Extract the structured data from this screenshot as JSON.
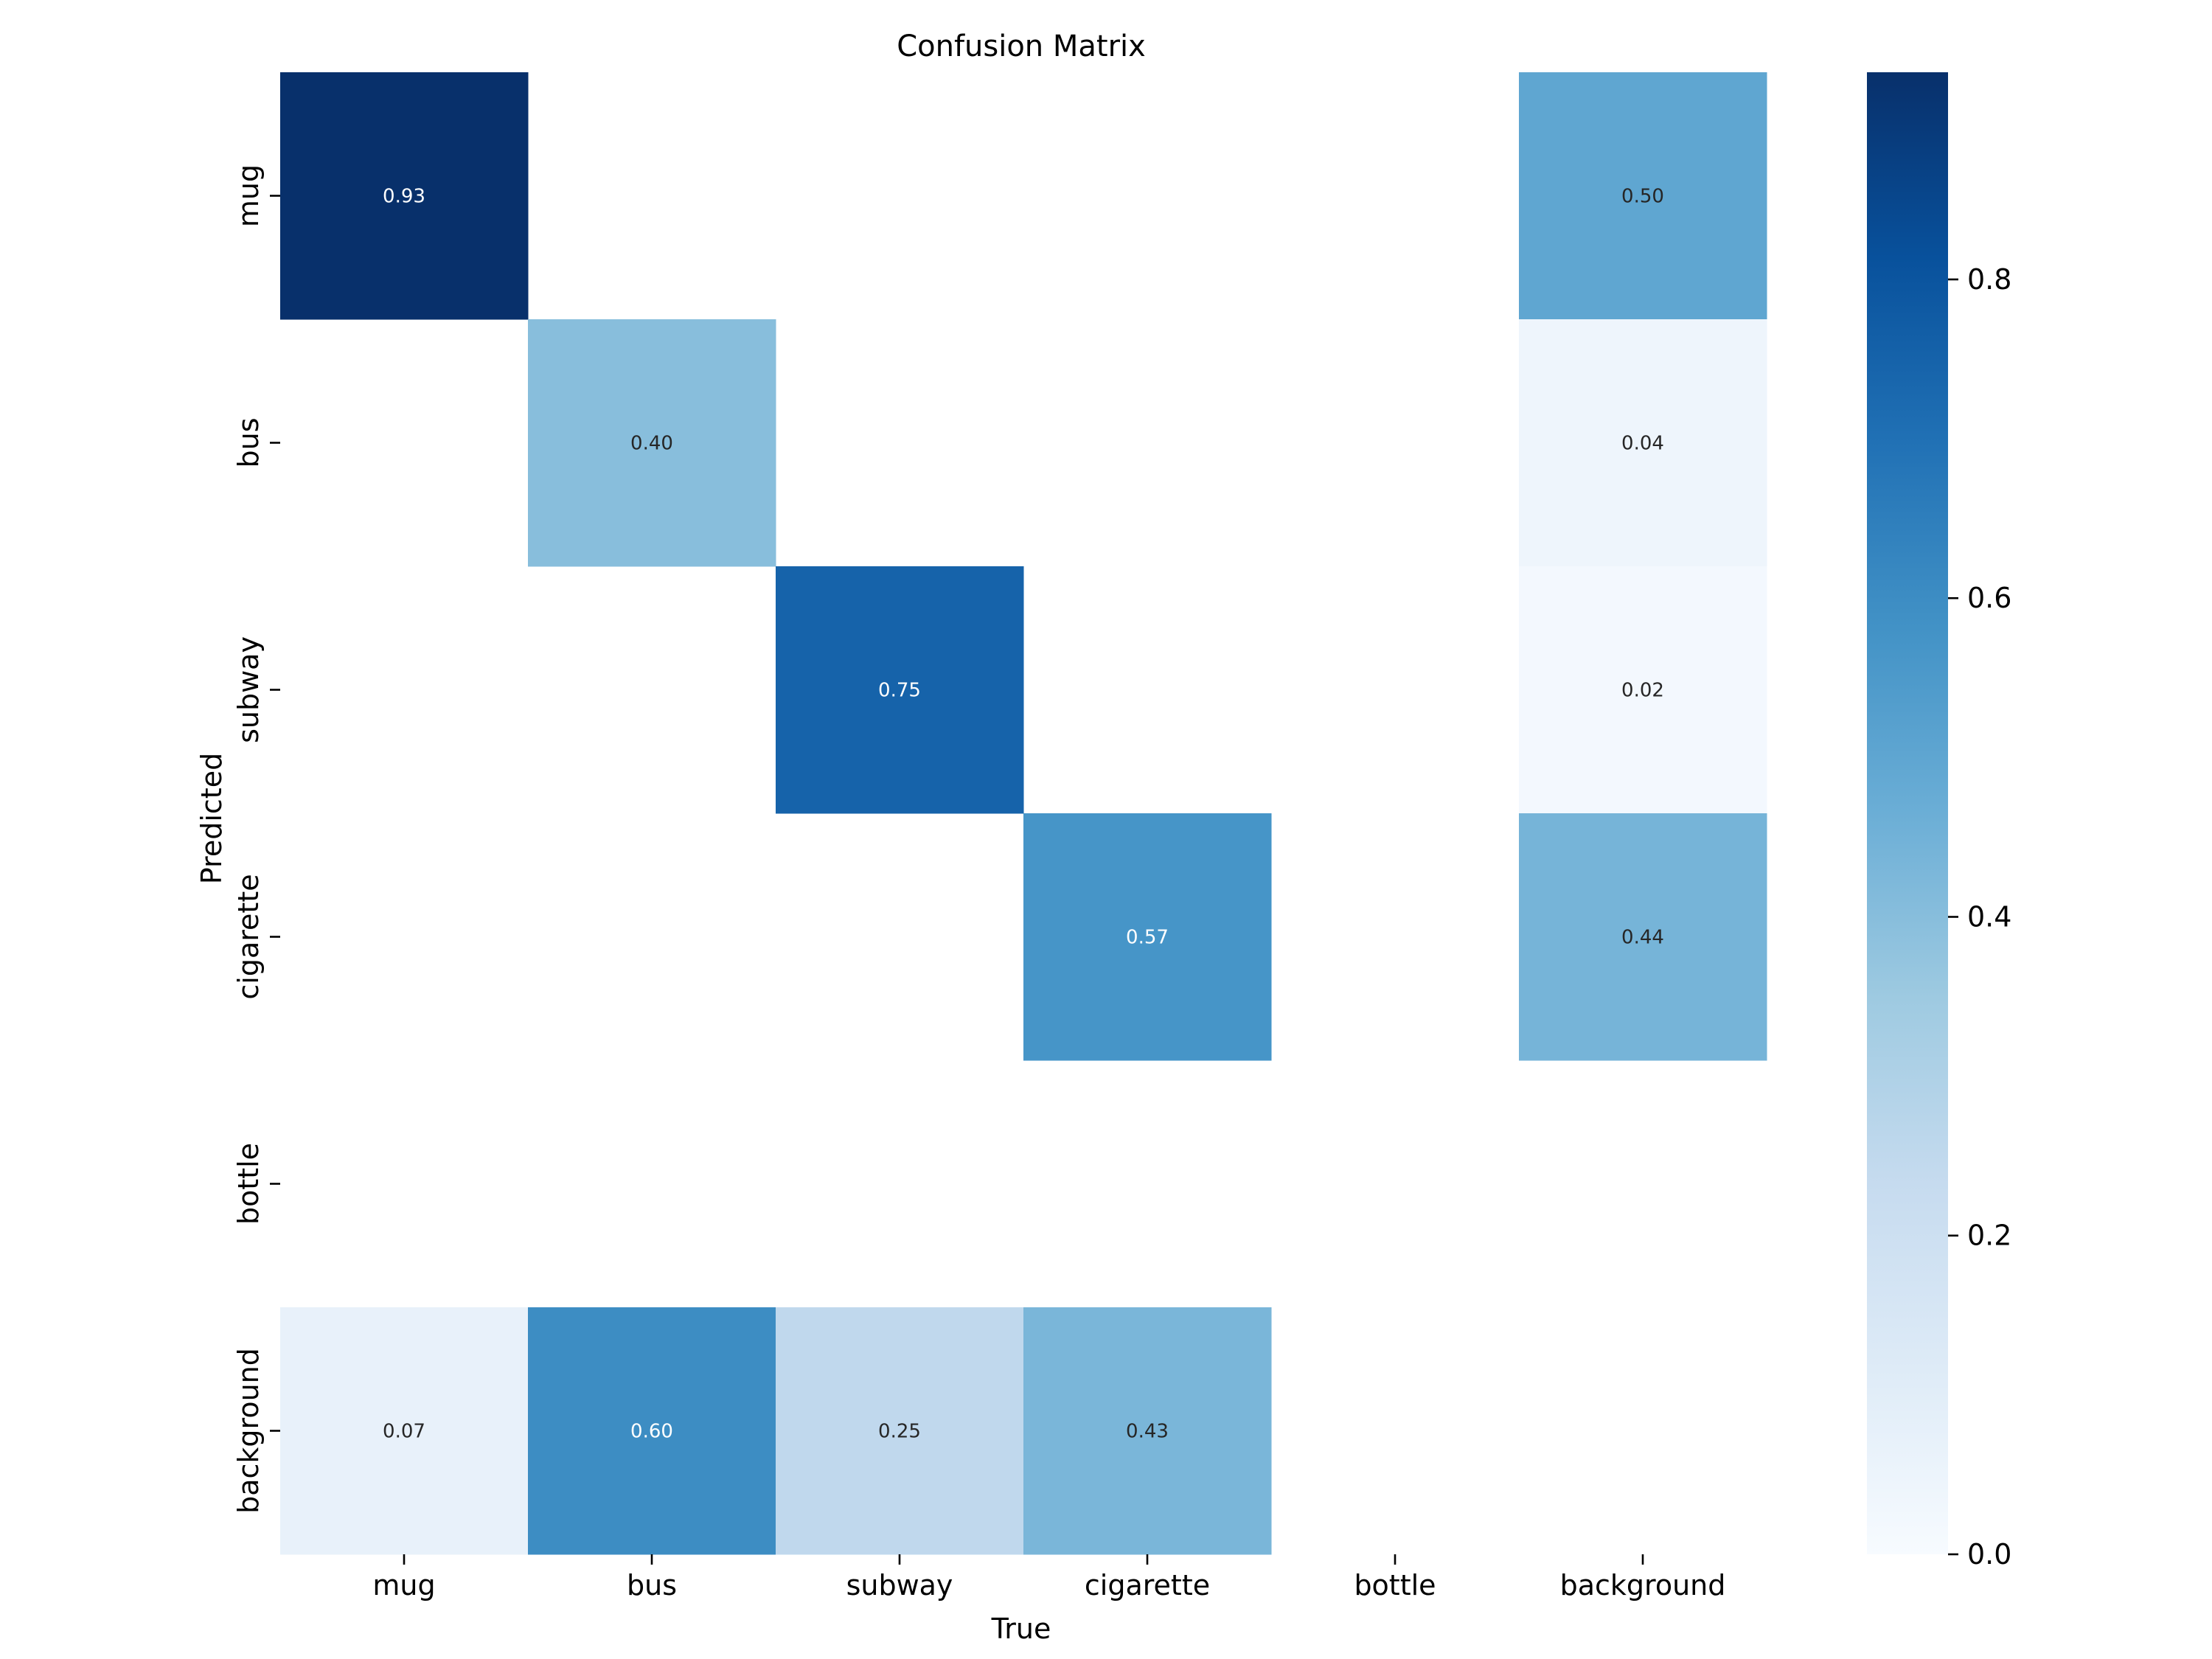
{
  "chart_data": {
    "type": "heatmap",
    "title": "Confusion Matrix",
    "xlabel": "True",
    "ylabel": "Predicted",
    "x_categories": [
      "mug",
      "bus",
      "subway",
      "cigarette",
      "bottle",
      "background"
    ],
    "y_categories": [
      "mug",
      "bus",
      "subway",
      "cigarette",
      "bottle",
      "background"
    ],
    "values": [
      [
        0.93,
        null,
        null,
        null,
        null,
        0.5
      ],
      [
        null,
        0.4,
        null,
        null,
        null,
        0.04
      ],
      [
        null,
        null,
        0.75,
        null,
        null,
        0.02
      ],
      [
        null,
        null,
        null,
        0.57,
        null,
        0.44
      ],
      [
        null,
        null,
        null,
        null,
        null,
        null
      ],
      [
        0.07,
        0.6,
        0.25,
        0.43,
        null,
        null
      ]
    ],
    "value_labels": [
      [
        "0.93",
        "",
        "",
        "",
        "",
        "0.50"
      ],
      [
        "",
        "0.40",
        "",
        "",
        "",
        "0.04"
      ],
      [
        "",
        "",
        "0.75",
        "",
        "",
        "0.02"
      ],
      [
        "",
        "",
        "",
        "0.57",
        "",
        "0.44"
      ],
      [
        "",
        "",
        "",
        "",
        "",
        ""
      ],
      [
        "0.07",
        "0.60",
        "0.25",
        "0.43",
        "",
        ""
      ]
    ],
    "colorbar": {
      "range": [
        0,
        0.93
      ],
      "ticks": [
        0.0,
        0.2,
        0.4,
        0.6,
        0.8
      ],
      "tick_labels": [
        "0.0",
        "0.2",
        "0.4",
        "0.6",
        "0.8"
      ]
    },
    "colormap": "Blues",
    "colormap_stops": [
      "#f7fbff",
      "#deebf7",
      "#c6dbef",
      "#9ecae1",
      "#6baed6",
      "#4292c6",
      "#2171b5",
      "#08519c",
      "#08306b"
    ]
  }
}
